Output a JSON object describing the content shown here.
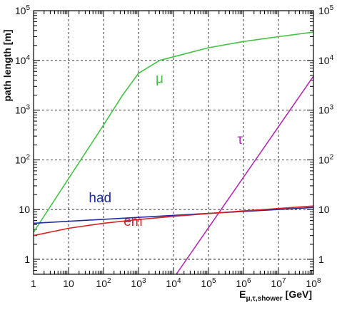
{
  "chart_data": {
    "type": "line",
    "xscale": "log",
    "yscale": "log",
    "xlim": [
      1,
      100000000
    ],
    "ylim": [
      0.5,
      100000
    ],
    "grid": true,
    "xlabel": "E",
    "xlabel_sub": "μ,τ,shower",
    "xlabel_unit": "[GeV]",
    "ylabel": "path length [m]",
    "x_ticks": [
      {
        "value": 1,
        "label": "1"
      },
      {
        "value": 10,
        "label": "10"
      },
      {
        "value": 100,
        "label": "10",
        "exp": "2"
      },
      {
        "value": 1000,
        "label": "10",
        "exp": "3"
      },
      {
        "value": 10000,
        "label": "10",
        "exp": "4"
      },
      {
        "value": 100000,
        "label": "10",
        "exp": "5"
      },
      {
        "value": 1000000,
        "label": "10",
        "exp": "6"
      },
      {
        "value": 10000000,
        "label": "10",
        "exp": "7"
      },
      {
        "value": 100000000,
        "label": "10",
        "exp": "8"
      }
    ],
    "y_ticks": [
      {
        "value": 1,
        "label": "1"
      },
      {
        "value": 10,
        "label": "10"
      },
      {
        "value": 100,
        "label": "10",
        "exp": "2"
      },
      {
        "value": 1000,
        "label": "10",
        "exp": "3"
      },
      {
        "value": 10000,
        "label": "10",
        "exp": "4"
      },
      {
        "value": 100000,
        "label": "10",
        "exp": "5"
      }
    ],
    "series": [
      {
        "name": "μ",
        "color": "#44c244",
        "x": [
          1,
          10,
          100,
          350,
          1000,
          4000,
          100000,
          1000000,
          10000000,
          100000000
        ],
        "y": [
          3.5,
          42,
          500,
          2000,
          5500,
          10000,
          18000,
          24000,
          30000,
          37000
        ]
      },
      {
        "name": "τ",
        "color": "#b02cb0",
        "x": [
          12000,
          100000000
        ],
        "y": [
          0.5,
          4800
        ]
      },
      {
        "name": "had",
        "color": "#1f2d9e",
        "x": [
          1,
          100000000
        ],
        "y": [
          5.3,
          11
        ]
      },
      {
        "name": "em",
        "color": "#d82020",
        "x": [
          1,
          10,
          100,
          1000,
          10000,
          100000,
          1000000,
          10000000,
          100000000
        ],
        "y": [
          3.0,
          4.2,
          5.3,
          6.3,
          7.3,
          8.3,
          9.4,
          10.5,
          11.8
        ]
      }
    ],
    "labels": [
      {
        "series": "μ",
        "text": "μ",
        "x": 4000,
        "y": 3500
      },
      {
        "series": "τ",
        "text": "τ",
        "x": 800000,
        "y": 210
      },
      {
        "series": "had",
        "text": "had",
        "x": 80,
        "y": 14
      },
      {
        "series": "em",
        "text": "em",
        "x": 700,
        "y": 4.7
      }
    ]
  }
}
